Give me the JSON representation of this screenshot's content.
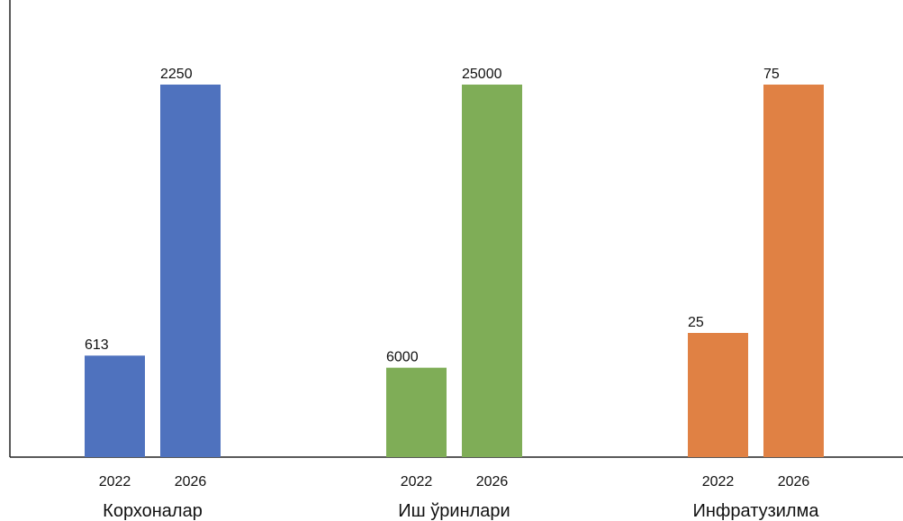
{
  "chart_data": {
    "type": "bar",
    "groups": [
      {
        "name": "Корхоналар",
        "color": "#4f72be",
        "bars": [
          {
            "year": "2022",
            "value": 613,
            "label": "613"
          },
          {
            "year": "2026",
            "value": 2250,
            "label": "2250"
          }
        ]
      },
      {
        "name": "Иш ўринлари",
        "color": "#7fad57",
        "bars": [
          {
            "year": "2022",
            "value": 6000,
            "label": "6000"
          },
          {
            "year": "2026",
            "value": 25000,
            "label": "25000"
          }
        ]
      },
      {
        "name": "Инфратузилма",
        "color": "#e08144",
        "bars": [
          {
            "year": "2022",
            "value": 25,
            "label": "25"
          },
          {
            "year": "2026",
            "value": 75,
            "label": "75"
          }
        ]
      }
    ],
    "scale_note": "each group is scaled independently; its larger value reaches the same height",
    "grid": false,
    "legend": "none"
  }
}
